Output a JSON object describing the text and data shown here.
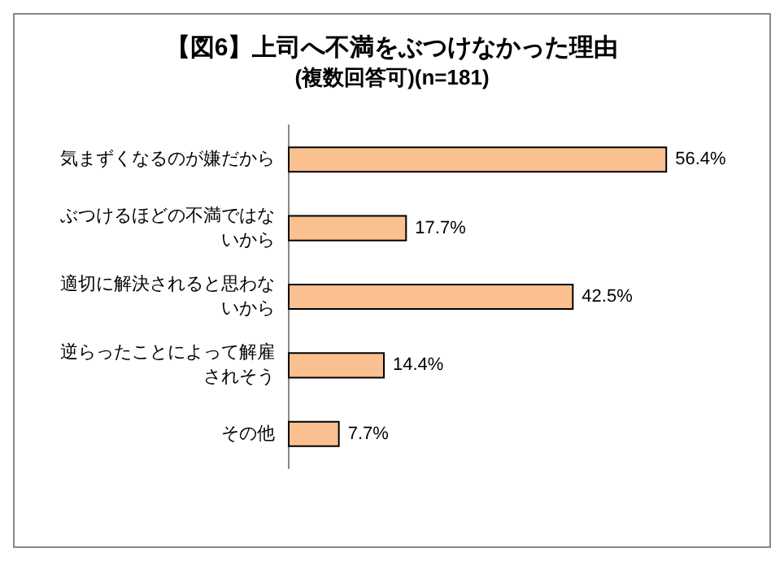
{
  "chart_data": {
    "type": "bar",
    "orientation": "horizontal",
    "title": "【図6】上司へ不満をぶつけなかった理由",
    "subtitle": "(複数回答可)(n=181)",
    "categories": [
      "気まずくなるのが嫌だから",
      "ぶつけるほどの不満ではないから",
      "適切に解決されると思わないから",
      "逆らったことによって解雇されそう",
      "その他"
    ],
    "values": [
      56.4,
      17.7,
      42.5,
      14.4,
      7.7
    ],
    "value_labels": [
      "56.4%",
      "17.7%",
      "42.5%",
      "14.4%",
      "7.7%"
    ],
    "color": "#fac090",
    "tick_labels": "y",
    "grid": false
  }
}
